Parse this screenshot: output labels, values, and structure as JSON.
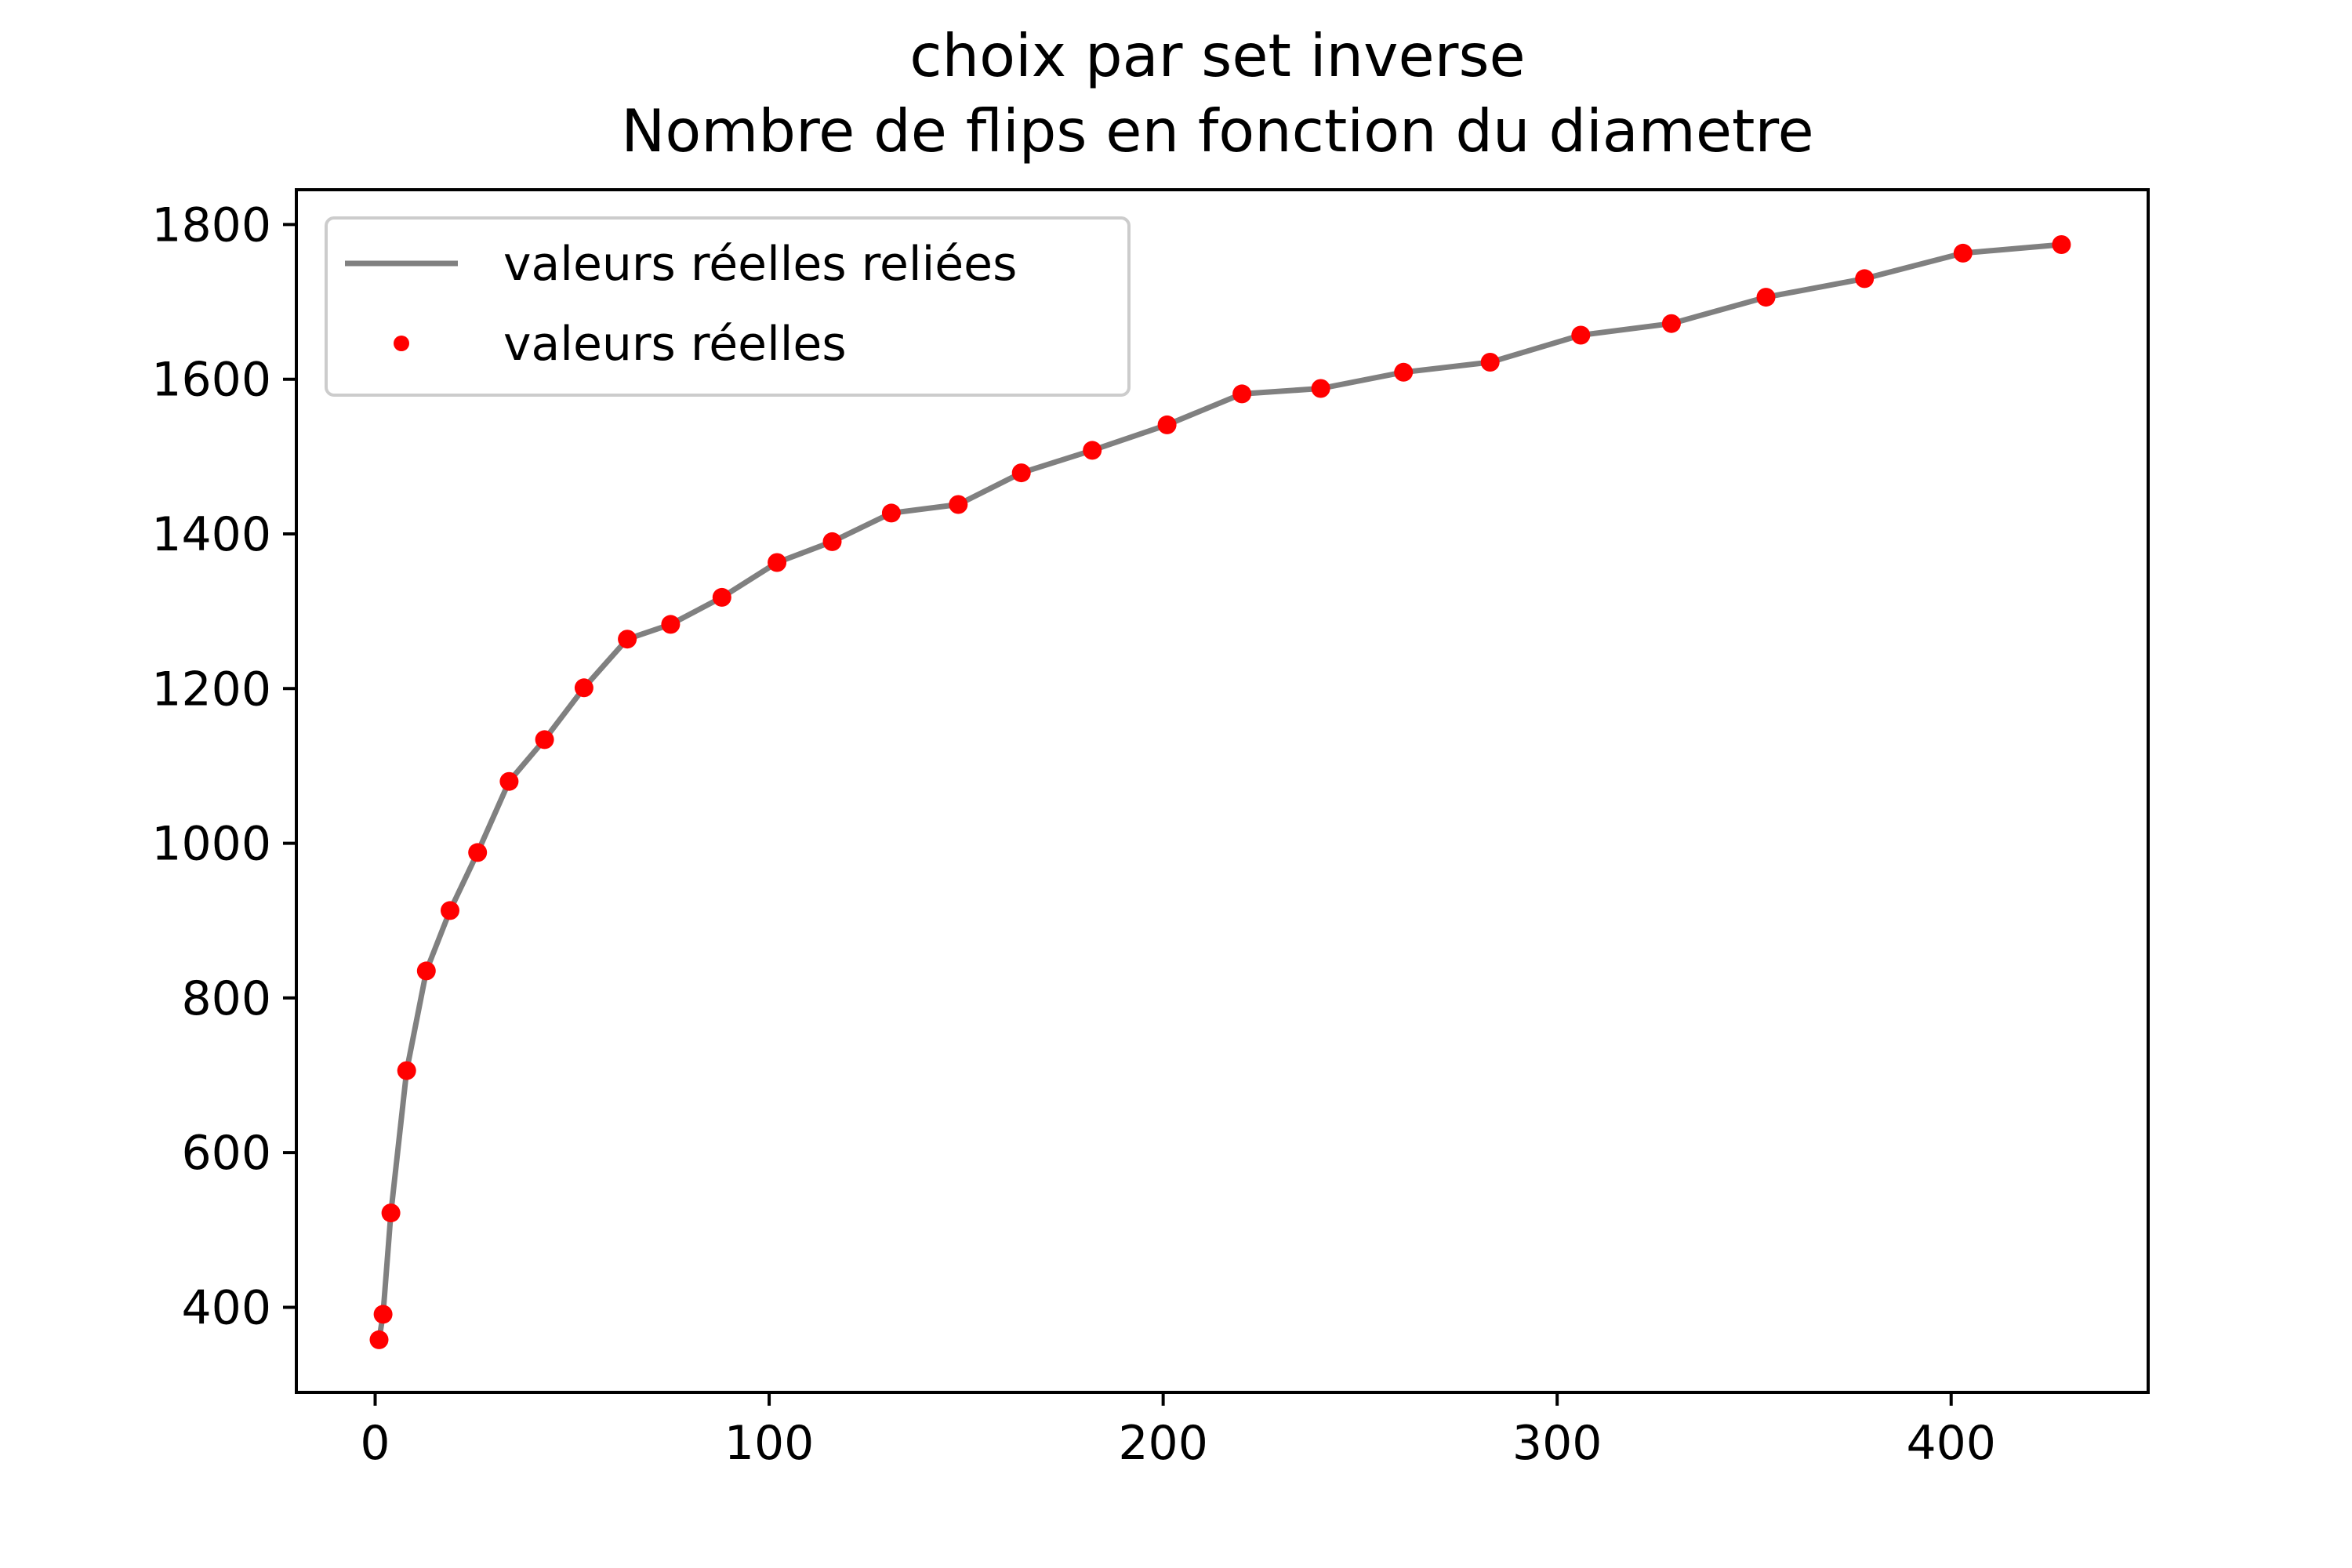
{
  "chart_data": {
    "type": "line",
    "title_lines": [
      "choix par set inverse",
      "Nombre de flips en fonction du diametre"
    ],
    "xlabel": "",
    "ylabel": "",
    "xlim": [
      -20,
      450
    ],
    "ylim": [
      290,
      1845
    ],
    "x_ticks": [
      0,
      100,
      200,
      300,
      400
    ],
    "y_ticks": [
      400,
      600,
      800,
      1000,
      1200,
      1400,
      1600,
      1800
    ],
    "grid": false,
    "legend_position": "top-left",
    "x": [
      1,
      2,
      4,
      8,
      13,
      19,
      26,
      34,
      43,
      53,
      64,
      75,
      88,
      102,
      116,
      131,
      148,
      164,
      182,
      201,
      220,
      240,
      261,
      283,
      306,
      329,
      353,
      378,
      403,
      428
    ],
    "series": [
      {
        "name": "valeurs réelles reliées",
        "style": "line",
        "color": "#808080",
        "values": [
          358,
          391,
          522,
          706,
          835,
          913,
          988,
          1080,
          1134,
          1201,
          1264,
          1283,
          1318,
          1363,
          1390,
          1427,
          1438,
          1479,
          1508,
          1541,
          1581,
          1588,
          1609,
          1622,
          1657,
          1672,
          1706,
          1730,
          1763,
          1774
        ]
      },
      {
        "name": "valeurs réelles",
        "style": "markers",
        "color": "#ff0000",
        "values": [
          358,
          391,
          522,
          706,
          835,
          913,
          988,
          1080,
          1134,
          1201,
          1264,
          1283,
          1318,
          1363,
          1390,
          1427,
          1438,
          1479,
          1508,
          1541,
          1581,
          1588,
          1609,
          1622,
          1657,
          1672,
          1706,
          1730,
          1763,
          1774
        ]
      }
    ]
  }
}
